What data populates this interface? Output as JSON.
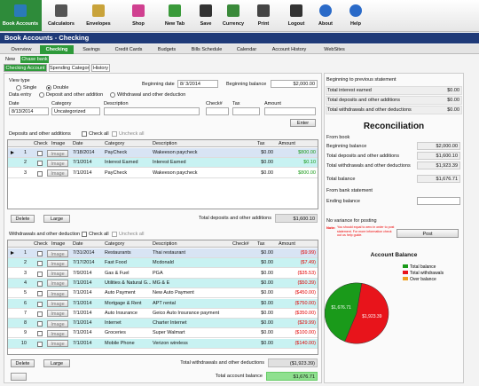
{
  "toolbar": [
    "Book Accounts",
    "Calculators",
    "Envelopes",
    "Shop",
    "New Tab",
    "Save",
    "Currency",
    "Print",
    "Logout",
    "About",
    "Help"
  ],
  "title": "Book Accounts - Checking",
  "tabs": [
    "Overview",
    "Checking",
    "Savings",
    "Credit Cards",
    "Budgets",
    "Bills Schedule",
    "Calendar",
    "Account History",
    "WebSites"
  ],
  "account_tabs": [
    "New",
    "Chase bank"
  ],
  "sub_tabs": [
    "Checking Account",
    "Spending Categories",
    "History"
  ],
  "form": {
    "view_type": "View type",
    "single": "Single",
    "double": "Double",
    "beginning_date_label": "Beginning date",
    "beginning_date": "8/ 3/2014",
    "beginning_balance_label": "Beginning balance",
    "beginning_balance": "$2,000.00",
    "data_entry": "Data entry",
    "deposit": "Deposit and other addition",
    "withdrawal": "Withdrawal and other deduction",
    "labels": [
      "Date",
      "Category",
      "Description",
      "Check#",
      "Tax",
      "Amount"
    ],
    "date": "8/13/2014",
    "category": "Uncategorized",
    "enter": "Enter"
  },
  "deposits": {
    "label": "Deposits and other additions",
    "check_all": "Check all",
    "uncheck_all": "Uncheck all",
    "columns": [
      "Check",
      "Image",
      "Date",
      "Category",
      "Description",
      "Tax",
      "Amount"
    ],
    "rows": [
      {
        "n": "1",
        "image": "Image",
        "date": "7/18/2014",
        "category": "PayCheck",
        "description": "Wakeeson paycheck",
        "tax": "$0.00",
        "amount": "$800.00"
      },
      {
        "n": "2",
        "image": "Image",
        "date": "7/1/2014",
        "category": "Interest Earned",
        "description": "Interest Earned",
        "tax": "$0.00",
        "amount": "$0.10"
      },
      {
        "n": "3",
        "image": "Image",
        "date": "7/1/2014",
        "category": "PayCheck",
        "description": "Wakeeson paycheck",
        "tax": "$0.00",
        "amount": "$800.00"
      }
    ],
    "delete": "Delete",
    "large": "Large",
    "total_label": "Total deposits  and other additions",
    "total": "$1,600.10"
  },
  "withdrawals": {
    "label": "Withdrawals and other deductions",
    "check_all": "Check all",
    "uncheck_all": "Uncheck all",
    "columns": [
      "Check",
      "Image",
      "Date",
      "Category",
      "Description",
      "Check#",
      "Tax",
      "Amount"
    ],
    "rows": [
      {
        "n": "1",
        "image": "Image",
        "date": "7/31/2014",
        "category": "Restaurants",
        "description": "Thai restaurant",
        "tax": "$0.00",
        "amount": "($9.99)"
      },
      {
        "n": "2",
        "image": "Image",
        "date": "7/17/2014",
        "category": "Fast Food",
        "description": "Mcdonald",
        "tax": "$0.00",
        "amount": "($7.49)"
      },
      {
        "n": "3",
        "image": "Image",
        "date": "7/9/2014",
        "category": "Gas & Fuel",
        "description": "PGA",
        "tax": "$0.00",
        "amount": "($35.53)"
      },
      {
        "n": "4",
        "image": "Image",
        "date": "7/1/2014",
        "category": "Utilities & Natural G...",
        "description": "MG & E",
        "tax": "$0.00",
        "amount": "($50.39)"
      },
      {
        "n": "5",
        "image": "Image",
        "date": "7/1/2014",
        "category": "Auto Payment",
        "description": "New Auto Payment",
        "tax": "$0.00",
        "amount": "($450.00)"
      },
      {
        "n": "6",
        "image": "Image",
        "date": "7/1/2014",
        "category": "Mortgage & Rent",
        "description": "APT rental",
        "tax": "$0.00",
        "amount": "($750.00)"
      },
      {
        "n": "7",
        "image": "Image",
        "date": "7/1/2014",
        "category": "Auto Insurance",
        "description": "Geico Auto Insurance payment",
        "tax": "$0.00",
        "amount": "($350.00)"
      },
      {
        "n": "8",
        "image": "Image",
        "date": "7/1/2014",
        "category": "Internet",
        "description": "Charter Internet",
        "tax": "$0.00",
        "amount": "($29.99)"
      },
      {
        "n": "9",
        "image": "Image",
        "date": "7/1/2014",
        "category": "Groceries",
        "description": "Super Walmart",
        "tax": "$0.00",
        "amount": "($100.00)"
      },
      {
        "n": "10",
        "image": "Image",
        "date": "7/1/2014",
        "category": "Mobile Phone",
        "description": "Verizon wireless",
        "tax": "$0.00",
        "amount": "($140.00)"
      }
    ],
    "delete": "Delete",
    "large": "Large",
    "total_label": "Total withdrawals and other deductions",
    "total": "($1,923.39)"
  },
  "balance_label": "Total account balance",
  "balance": "$1,676.71",
  "right": {
    "prev_title": "Beginning to previous statement",
    "prev_rows": [
      {
        "label": "Total interest earned",
        "value": "$0.00"
      },
      {
        "label": "Total deposits and other additions",
        "value": "$0.00"
      },
      {
        "label": "Total withdrawals and other deductions",
        "value": "$0.00"
      }
    ],
    "reconciliation": "Reconciliation",
    "from_book": "From book",
    "book_rows": [
      {
        "label": "Beginning balance",
        "value": "$2,000.00"
      },
      {
        "label": "Total deposits and other additions",
        "value": "$1,600.10"
      },
      {
        "label": "Total withdrawals and other deductions",
        "value": "$1,923.39"
      },
      {
        "label": "Total balance",
        "value": "$1,676.71"
      }
    ],
    "from_bank": "From bank statement",
    "ending_balance": "Ending balance",
    "variance": "No variance for posting",
    "note_label": "Note:",
    "note": "You should equal to zero in order to post statement. For more information check out us help guide.",
    "post": "Post"
  },
  "pie": {
    "type": "pie",
    "title": "Account Balance",
    "legend": [
      {
        "name": "Total balance",
        "color": "#1a9a1a"
      },
      {
        "name": "Total withdrawals",
        "color": "#e8141b"
      },
      {
        "name": "Over balance",
        "color": "#f0a020"
      }
    ],
    "slices": [
      {
        "value": 1676.71,
        "label": "$1,676.71",
        "color": "#1a9a1a"
      },
      {
        "value": 1923.39,
        "label": "$1,923.39",
        "color": "#e8141b"
      }
    ]
  }
}
